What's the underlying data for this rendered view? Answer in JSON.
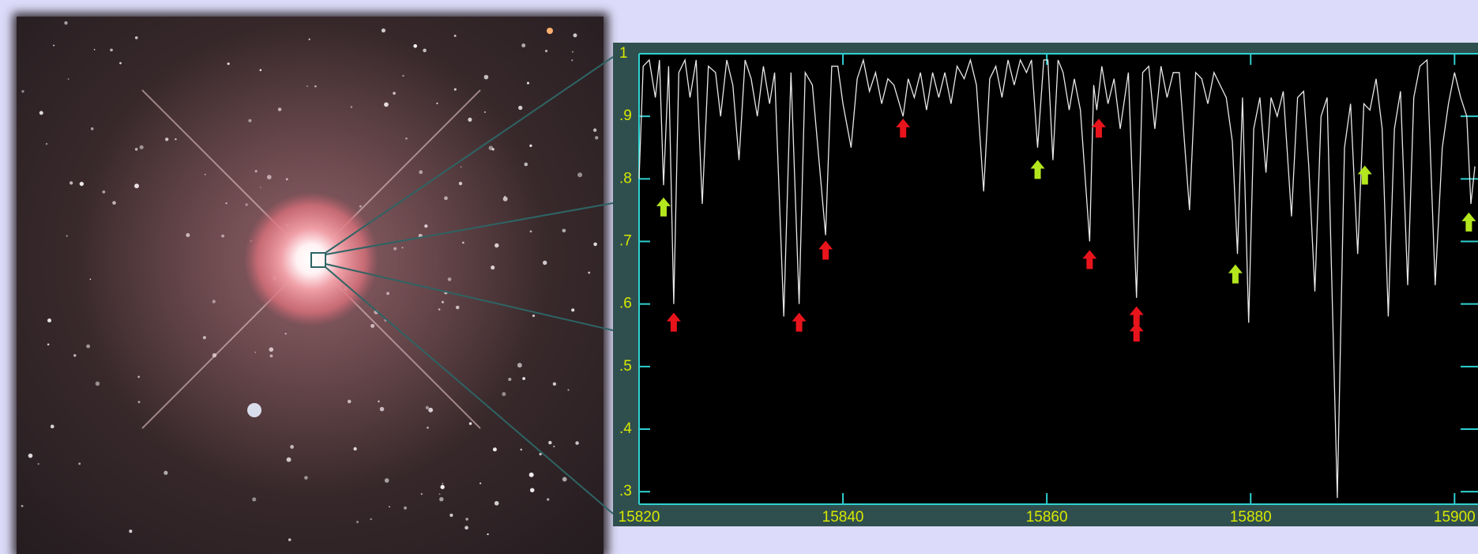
{
  "chart_data": {
    "type": "line",
    "x": [
      15820.0,
      15820.4,
      15821.0,
      15821.6,
      15822.0,
      15822.4,
      15822.9,
      15823.4,
      15823.9,
      15824.5,
      15825.0,
      15825.6,
      15826.2,
      15826.8,
      15827.5,
      15828.0,
      15828.6,
      15829.2,
      15829.8,
      15830.4,
      15831.0,
      15831.6,
      15832.2,
      15832.8,
      15833.3,
      15834.2,
      15834.9,
      15835.7,
      15836.3,
      15837.0,
      15838.3,
      15838.9,
      15839.5,
      15840.0,
      15840.8,
      15841.4,
      15842.0,
      15842.6,
      15843.2,
      15843.8,
      15844.4,
      15845.0,
      15845.9,
      15846.4,
      15847.0,
      15847.6,
      15848.2,
      15848.8,
      15849.4,
      15850.0,
      15850.6,
      15851.2,
      15851.9,
      15852.5,
      15853.1,
      15853.8,
      15854.4,
      15855.0,
      15855.6,
      15856.2,
      15856.8,
      15857.4,
      15858.0,
      15858.5,
      15859.1,
      15859.7,
      15860.1,
      15860.6,
      15861.1,
      15861.6,
      15862.2,
      15862.7,
      15863.3,
      15864.2,
      15864.6,
      15864.9,
      15865.4,
      15866.0,
      15866.6,
      15867.2,
      15868.0,
      15868.8,
      15869.4,
      15870.0,
      15870.6,
      15871.2,
      15871.8,
      15872.4,
      15873.0,
      15874.0,
      15874.6,
      15875.2,
      15875.8,
      15876.4,
      15877.0,
      15877.6,
      15878.2,
      15878.7,
      15879.2,
      15879.8,
      15880.3,
      15880.9,
      15881.5,
      15882.0,
      15882.6,
      15883.2,
      15884.0,
      15884.6,
      15885.2,
      15885.7,
      15886.3,
      15886.9,
      15887.5,
      15888.5,
      15889.2,
      15889.8,
      15890.5,
      15891.1,
      15891.7,
      15892.3,
      15892.9,
      15893.5,
      15894.1,
      15894.7,
      15895.4,
      15896.0,
      15896.6,
      15897.3,
      15898.1,
      15898.8,
      15899.4,
      15900.0,
      15900.6,
      15901.2,
      15901.6,
      15902.0
    ],
    "values": [
      0.8,
      0.98,
      0.99,
      0.93,
      0.99,
      0.79,
      0.98,
      0.6,
      0.97,
      0.99,
      0.93,
      0.99,
      0.76,
      0.98,
      0.97,
      0.9,
      0.99,
      0.95,
      0.83,
      0.99,
      0.96,
      0.9,
      0.98,
      0.92,
      0.97,
      0.58,
      0.97,
      0.6,
      0.97,
      0.95,
      0.71,
      0.98,
      0.98,
      0.92,
      0.85,
      0.96,
      0.99,
      0.94,
      0.97,
      0.92,
      0.96,
      0.95,
      0.9,
      0.96,
      0.93,
      0.97,
      0.91,
      0.97,
      0.93,
      0.97,
      0.92,
      0.98,
      0.96,
      0.99,
      0.95,
      0.78,
      0.96,
      0.98,
      0.93,
      0.99,
      0.95,
      0.99,
      0.97,
      0.99,
      0.85,
      0.99,
      0.99,
      0.83,
      0.99,
      0.97,
      0.91,
      0.96,
      0.91,
      0.7,
      0.95,
      0.91,
      0.98,
      0.92,
      0.96,
      0.88,
      0.97,
      0.61,
      0.97,
      0.98,
      0.88,
      0.98,
      0.93,
      0.97,
      0.97,
      0.75,
      0.97,
      0.96,
      0.92,
      0.97,
      0.95,
      0.93,
      0.86,
      0.68,
      0.93,
      0.57,
      0.88,
      0.93,
      0.81,
      0.93,
      0.9,
      0.94,
      0.74,
      0.93,
      0.94,
      0.82,
      0.62,
      0.9,
      0.93,
      0.29,
      0.85,
      0.92,
      0.68,
      0.92,
      0.91,
      0.96,
      0.88,
      0.58,
      0.88,
      0.94,
      0.63,
      0.93,
      0.98,
      0.99,
      0.63,
      0.85,
      0.92,
      0.97,
      0.93,
      0.9,
      0.76,
      0.82
    ],
    "color": "#e8e8e8",
    "xlim": [
      15820,
      15902.3
    ],
    "xticks": [
      15820,
      15840,
      15860,
      15880,
      15900
    ],
    "ylim": [
      0.28,
      1.0
    ],
    "yticks": [
      {
        "value": 0.3,
        "label": ".3"
      },
      {
        "value": 0.4,
        "label": ".4"
      },
      {
        "value": 0.5,
        "label": ".5"
      },
      {
        "value": 0.6,
        "label": ".6"
      },
      {
        "value": 0.7,
        "label": ".7"
      },
      {
        "value": 0.8,
        "label": ".8"
      },
      {
        "value": 0.9,
        "label": ".9"
      },
      1
    ],
    "markers": [
      {
        "color": "#e8141c",
        "x": [
          15823.4,
          15835.7,
          15838.3,
          15845.9,
          15864.2,
          15865.1,
          15868.8,
          15868.8
        ],
        "y": [
          0.59,
          0.59,
          0.705,
          0.9,
          0.69,
          0.9,
          0.6,
          0.574
        ]
      },
      {
        "color": "#b4e61e",
        "x": [
          15822.4,
          15859.1,
          15878.5,
          15891.2,
          15901.4
        ],
        "y": [
          0.774,
          0.834,
          0.667,
          0.825,
          0.75
        ]
      }
    ]
  }
}
